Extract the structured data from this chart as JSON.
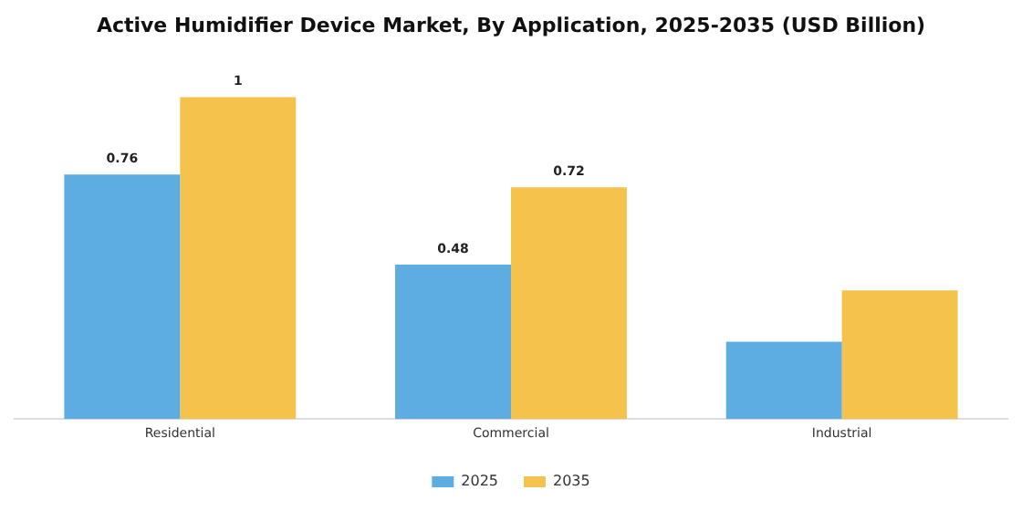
{
  "chart_data": {
    "type": "bar",
    "title": "Active Humidifier Device Market, By Application, 2025-2035 (USD Billion)",
    "categories": [
      "Residential",
      "Commercial",
      "Industrial"
    ],
    "series": [
      {
        "name": "2025",
        "color": "#5dade2",
        "values": [
          0.76,
          0.48,
          0.24
        ],
        "value_labels": [
          "0.76",
          "0.48",
          null
        ]
      },
      {
        "name": "2035",
        "color": "#f5c24c",
        "values": [
          1,
          0.72,
          0.4
        ],
        "value_labels": [
          "1",
          "0.72",
          null
        ]
      }
    ],
    "grid": false,
    "legend": "bottom"
  }
}
